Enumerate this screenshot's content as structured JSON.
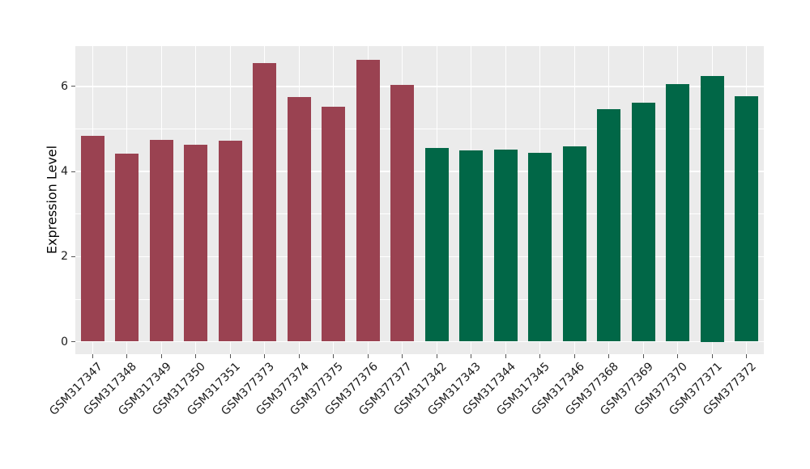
{
  "chart_data": {
    "type": "bar",
    "title": "",
    "xlabel": "",
    "ylabel": "Expression Level",
    "categories": [
      "GSM317347",
      "GSM317348",
      "GSM317349",
      "GSM317350",
      "GSM317351",
      "GSM377373",
      "GSM377374",
      "GSM377375",
      "GSM377376",
      "GSM377377",
      "GSM317342",
      "GSM317343",
      "GSM317344",
      "GSM317345",
      "GSM317346",
      "GSM377368",
      "GSM377369",
      "GSM377370",
      "GSM377371",
      "GSM377372"
    ],
    "values": [
      4.84,
      4.42,
      4.74,
      4.62,
      4.72,
      6.55,
      5.75,
      5.52,
      6.63,
      6.04,
      4.56,
      4.5,
      4.52,
      4.43,
      4.59,
      5.46,
      5.61,
      6.06,
      6.25,
      5.77
    ],
    "group_of_bar": [
      1,
      1,
      1,
      1,
      1,
      1,
      1,
      1,
      1,
      1,
      2,
      2,
      2,
      2,
      2,
      2,
      2,
      2,
      2,
      2
    ],
    "group_colors": {
      "1": "#9A4251",
      "2": "#016747"
    },
    "yticks": [
      0,
      2,
      4,
      6
    ],
    "minor_yticks": [
      1,
      3,
      5
    ],
    "ylim": [
      0,
      6.94
    ],
    "grid": "on",
    "legend": "none",
    "panel_background": "#EBEBEB",
    "grid_color": "#FFFFFF",
    "tick_color": "#555555",
    "text_color": "#1A1A1A"
  }
}
